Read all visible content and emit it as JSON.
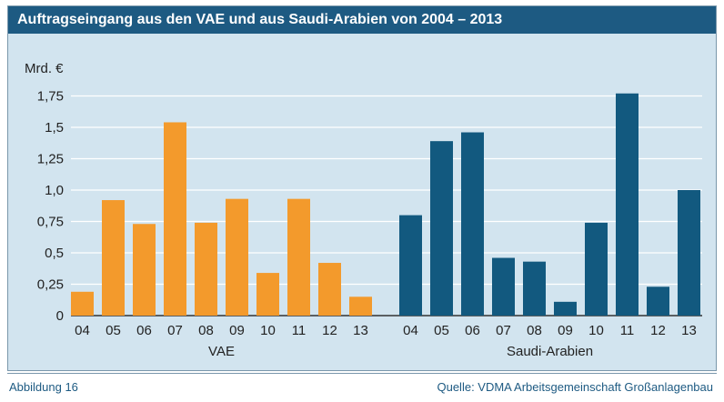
{
  "title": "Auftragseingang aus den VAE und aus Saudi-Arabien von 2004 – 2013",
  "footer": {
    "figure_label": "Abbildung 16",
    "source": "Quelle: VDMA Arbeitsgemeinschaft Großanlagenbau"
  },
  "colors": {
    "vae": "#f39a2c",
    "saudi": "#12597f",
    "title_bg": "#1d5a82",
    "plot_bg": "#d2e4ef"
  },
  "chart_data": {
    "type": "bar",
    "title": "Auftragseingang aus den VAE und aus Saudi-Arabien von 2004 – 2013",
    "ylabel": "Mrd. €",
    "ylim": [
      0,
      2.0
    ],
    "yticks": [
      0,
      0.25,
      0.5,
      0.75,
      1.0,
      1.25,
      1.5,
      1.75
    ],
    "ytick_labels": [
      "0",
      "0,25",
      "0,5",
      "0,75",
      "1,0",
      "1,25",
      "1,5",
      "1,75"
    ],
    "grid": true,
    "categories": [
      "04",
      "05",
      "06",
      "07",
      "08",
      "09",
      "10",
      "11",
      "12",
      "13"
    ],
    "series": [
      {
        "name": "VAE",
        "values": [
          0.19,
          0.92,
          0.73,
          1.54,
          0.74,
          0.93,
          0.34,
          0.93,
          0.42,
          0.15
        ]
      },
      {
        "name": "Saudi-Arabien",
        "values": [
          0.8,
          1.39,
          1.46,
          0.46,
          0.43,
          0.11,
          0.74,
          1.77,
          0.23,
          1.0
        ]
      }
    ]
  }
}
